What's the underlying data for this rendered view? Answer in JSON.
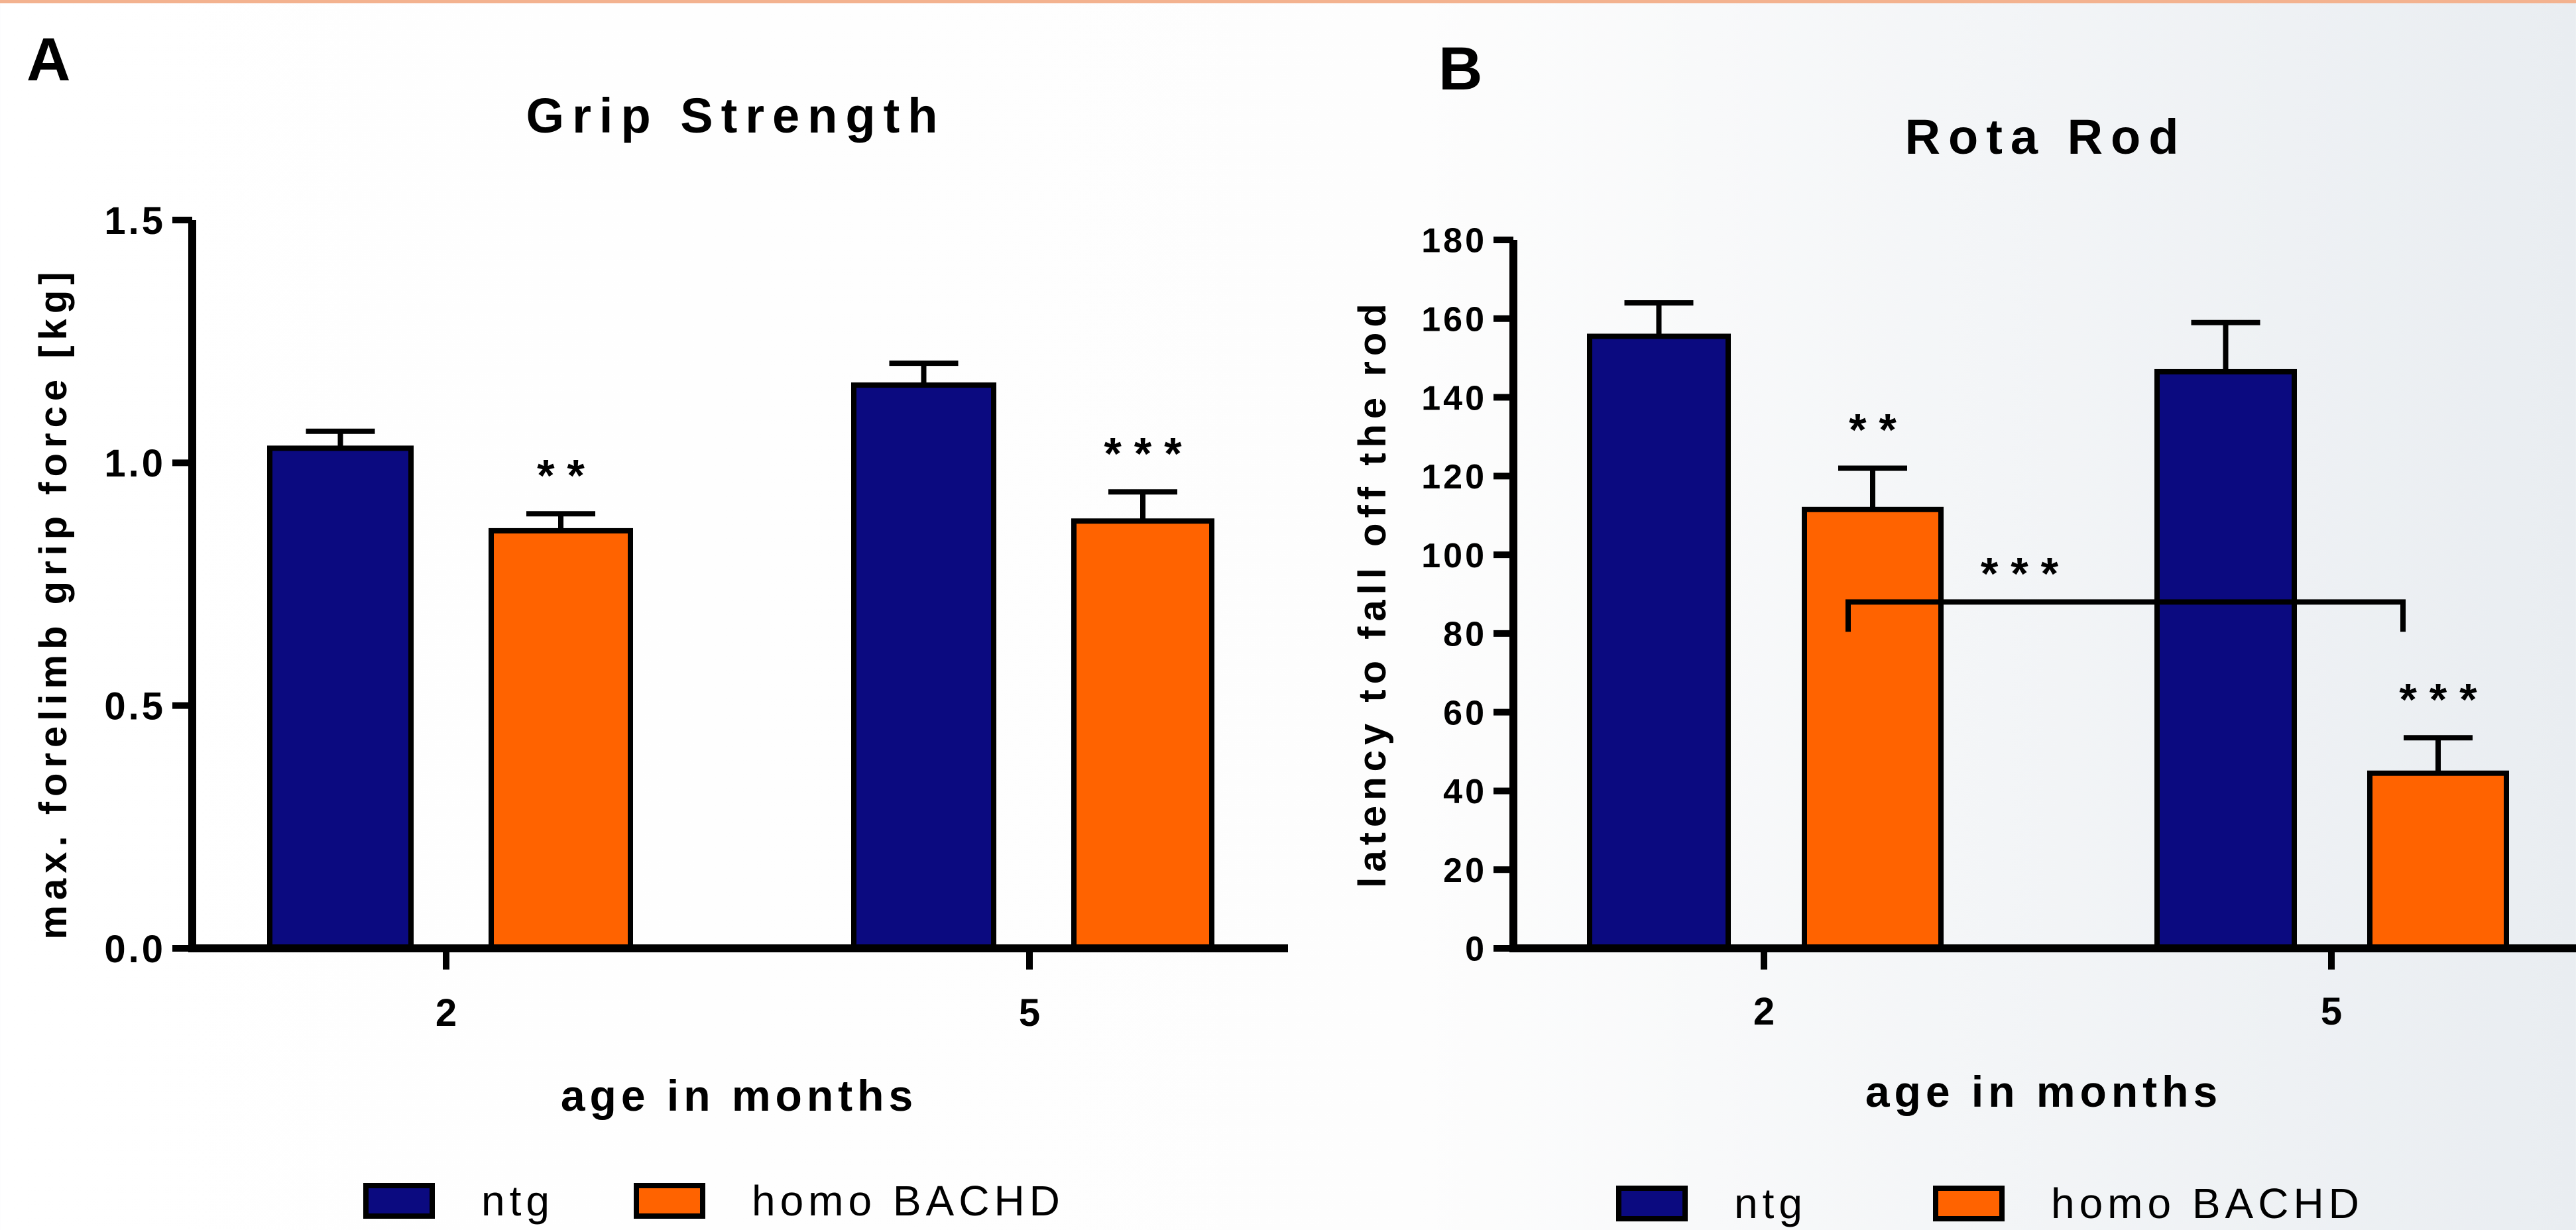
{
  "colors": {
    "ntg": "#0b0a80",
    "homo": "#ff6300",
    "axis": "#000000"
  },
  "legend": {
    "ntg": "ntg",
    "homo": "homo BACHD"
  },
  "chart_data": [
    {
      "panel": "A",
      "type": "bar",
      "title": "Grip Strength",
      "xlabel": "age in months",
      "ylabel": "max. forelimb grip force [kg]",
      "ylim": [
        0,
        1.5
      ],
      "yticks": [
        "0.0",
        "0.5",
        "1.0",
        "1.5"
      ],
      "ytick_values": [
        0,
        0.5,
        1.0,
        1.5
      ],
      "categories": [
        "2",
        "5"
      ],
      "series": [
        {
          "name": "ntg",
          "values": [
            1.03,
            1.16
          ],
          "errors": [
            0.035,
            0.045
          ]
        },
        {
          "name": "homo BACHD",
          "values": [
            0.86,
            0.88
          ],
          "errors": [
            0.035,
            0.06
          ]
        }
      ],
      "annotations": [
        {
          "text": "* *",
          "category": "2",
          "series": "homo BACHD"
        },
        {
          "text": "* * *",
          "category": "5",
          "series": "homo BACHD"
        }
      ],
      "grid": false,
      "legend_position": "bottom"
    },
    {
      "panel": "B",
      "type": "bar",
      "title": "Rota Rod",
      "xlabel": "age in months",
      "ylabel": "latency to fall off the rod",
      "ylim": [
        0,
        180
      ],
      "yticks": [
        "0",
        "20",
        "40",
        "60",
        "80",
        "100",
        "120",
        "140",
        "160",
        "180"
      ],
      "ytick_values": [
        0,
        20,
        40,
        60,
        80,
        100,
        120,
        140,
        160,
        180
      ],
      "categories": [
        "2",
        "5"
      ],
      "series": [
        {
          "name": "ntg",
          "values": [
            155.5,
            146.5
          ],
          "errors": [
            8.5,
            12.5
          ]
        },
        {
          "name": "homo BACHD",
          "values": [
            111.5,
            44.5
          ],
          "errors": [
            10.5,
            9.0
          ]
        }
      ],
      "annotations": [
        {
          "text": "* *",
          "category": "2",
          "series": "homo BACHD"
        },
        {
          "text": "* * *",
          "category": "5",
          "series": "homo BACHD"
        },
        {
          "text": "* * *",
          "bracket": [
            "homo BACHD@2",
            "homo BACHD@5"
          ],
          "y": 88
        }
      ],
      "grid": false,
      "legend_position": "bottom"
    }
  ]
}
